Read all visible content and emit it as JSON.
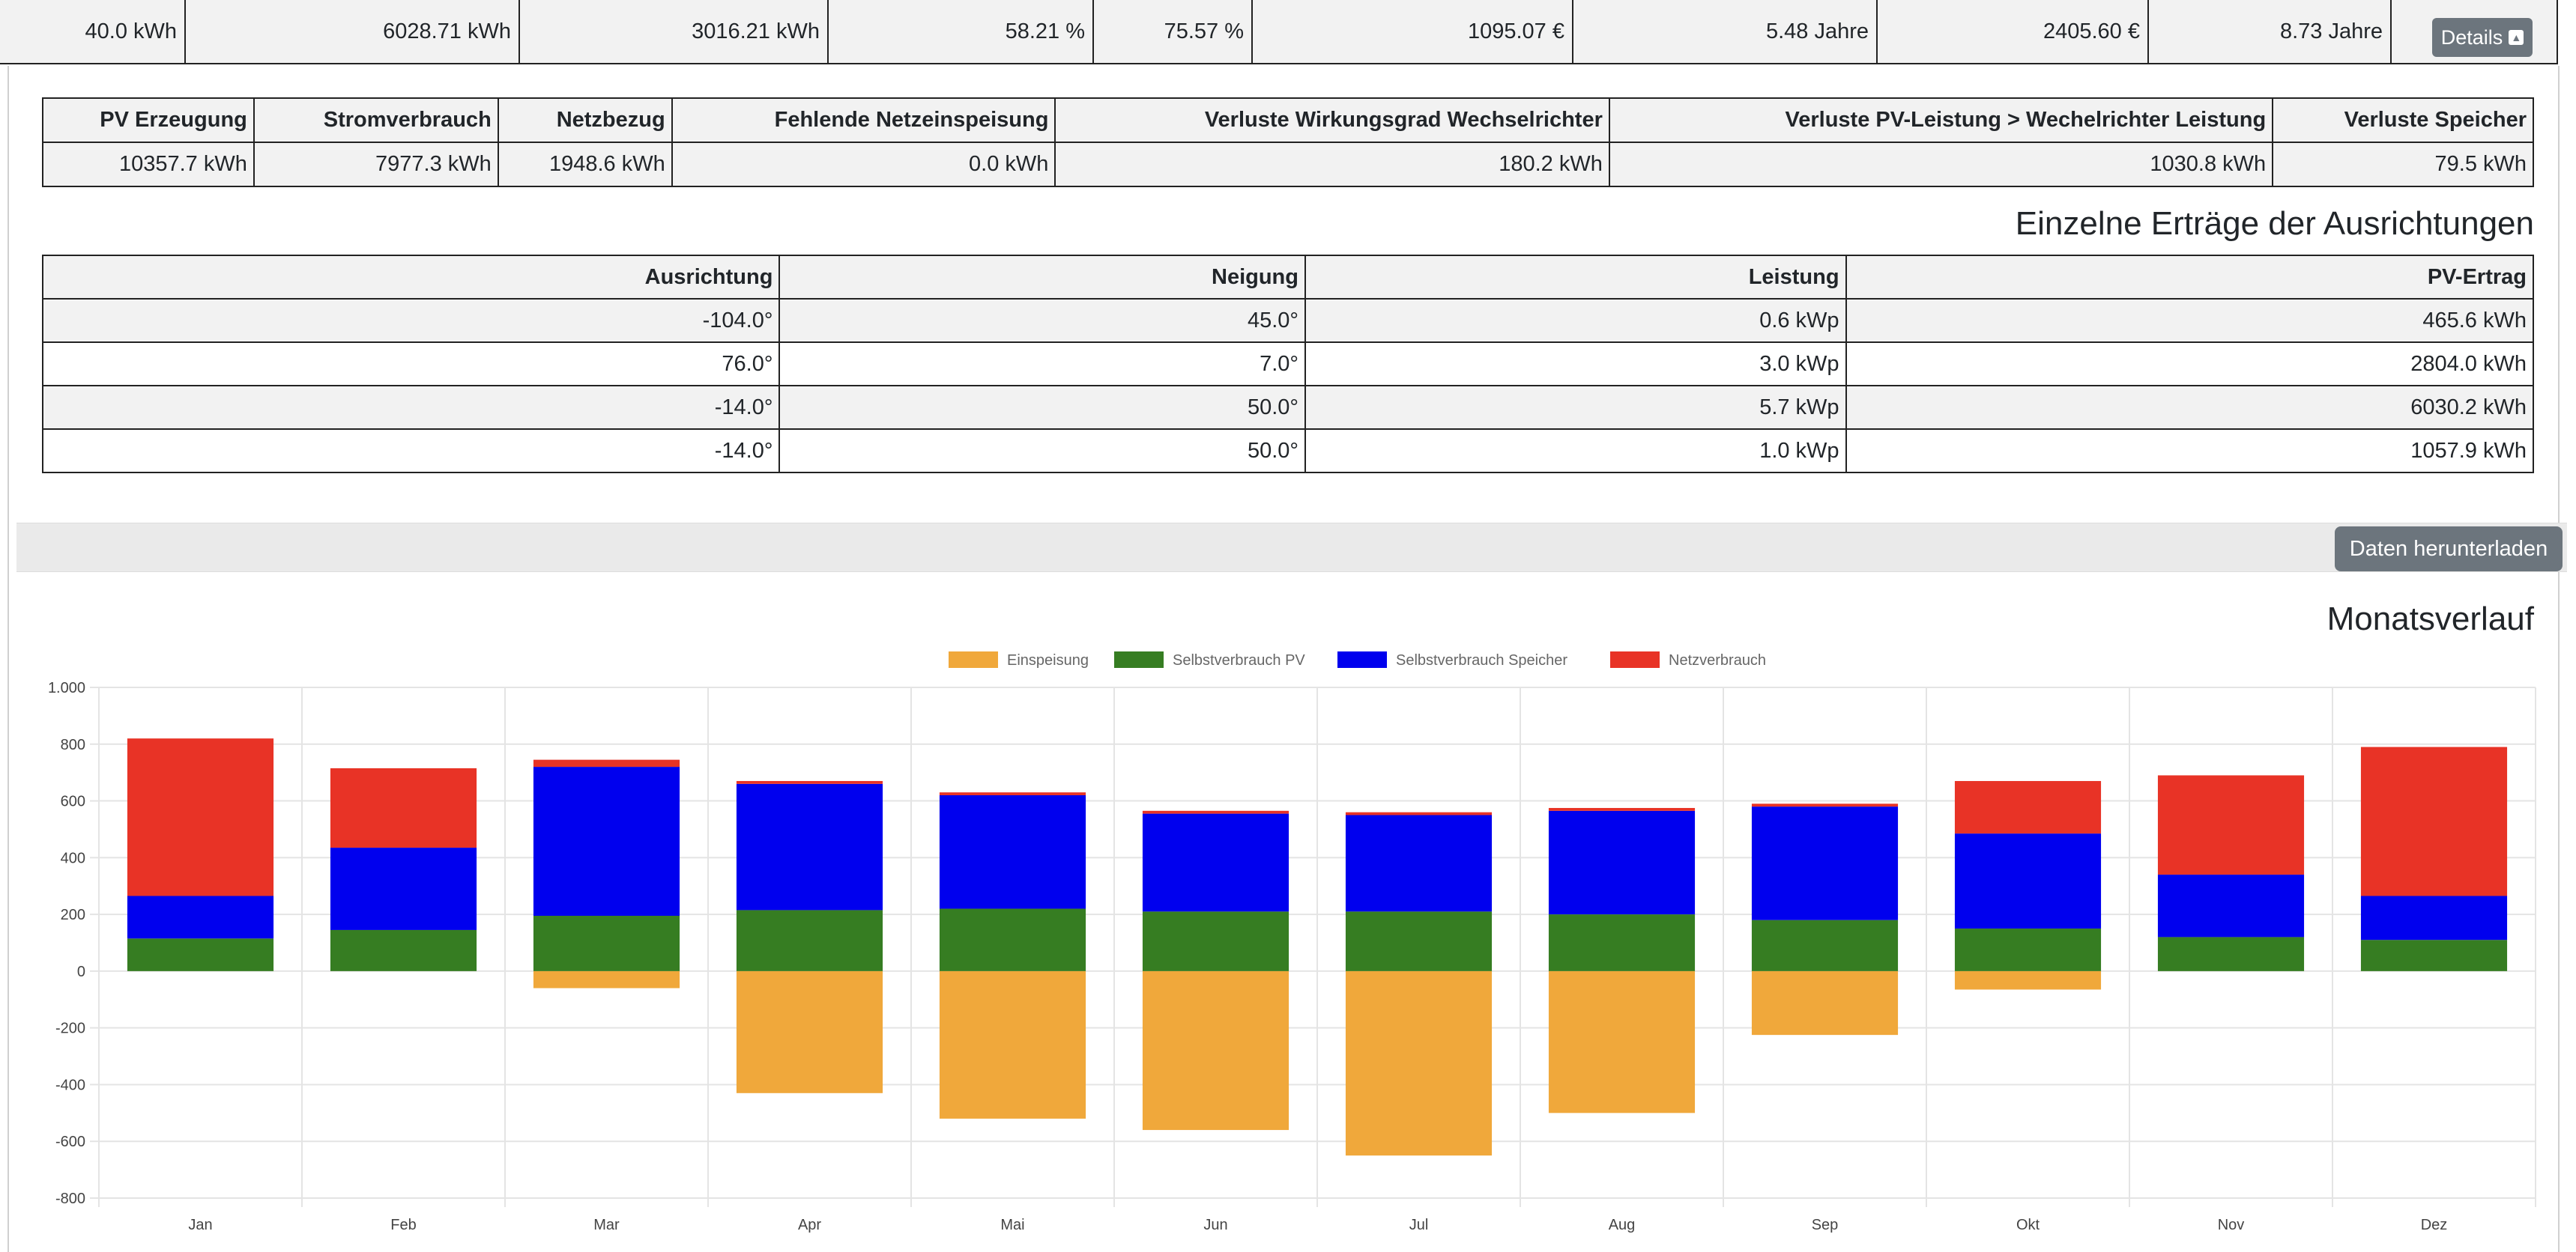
{
  "summary": {
    "cells": [
      "40.0 kWh",
      "6028.71 kWh",
      "3016.21 kWh",
      "58.21 %",
      "75.57 %",
      "1095.07 €",
      "5.48 Jahre",
      "2405.60 €",
      "8.73 Jahre"
    ],
    "details_label": "Details"
  },
  "energy_table": {
    "headers": [
      "PV Erzeugung",
      "Stromverbrauch",
      "Netzbezug",
      "Fehlende Netzeinspeisung",
      "Verluste Wirkungsgrad Wechselrichter",
      "Verluste PV-Leistung > Wechelrichter Leistung",
      "Verluste Speicher"
    ],
    "row": [
      "10357.7 kWh",
      "7977.3 kWh",
      "1948.6 kWh",
      "0.0 kWh",
      "180.2 kWh",
      "1030.8 kWh",
      "79.5 kWh"
    ]
  },
  "orientation": {
    "heading": "Einzelne Erträge der Ausrichtungen",
    "headers": [
      "Ausrichtung",
      "Neigung",
      "Leistung",
      "PV-Ertrag"
    ],
    "rows": [
      [
        "-104.0°",
        "45.0°",
        "0.6 kWp",
        "465.6 kWh"
      ],
      [
        "76.0°",
        "7.0°",
        "3.0 kWp",
        "2804.0 kWh"
      ],
      [
        "-14.0°",
        "50.0°",
        "5.7 kWp",
        "6030.2 kWh"
      ],
      [
        "-14.0°",
        "50.0°",
        "1.0 kWp",
        "1057.9 kWh"
      ]
    ]
  },
  "download_label": "Daten herunterladen",
  "chart_heading": "Monatsverlauf",
  "chart_data": {
    "type": "bar",
    "stacked": true,
    "categories": [
      "Jan",
      "Feb",
      "Mar",
      "Apr",
      "Mai",
      "Jun",
      "Jul",
      "Aug",
      "Sep",
      "Okt",
      "Nov",
      "Dez"
    ],
    "series": [
      {
        "name": "Einspeisung",
        "color": "#f0a83b",
        "values": [
          0,
          0,
          -60,
          -430,
          -520,
          -560,
          -650,
          -500,
          -225,
          -65,
          0,
          0
        ]
      },
      {
        "name": "Selbstverbrauch PV",
        "color": "#367d22",
        "values": [
          115,
          145,
          195,
          215,
          220,
          210,
          210,
          200,
          180,
          150,
          120,
          110
        ]
      },
      {
        "name": "Selbstverbrauch Speicher",
        "color": "#0000ee",
        "values": [
          150,
          290,
          525,
          445,
          400,
          345,
          340,
          365,
          400,
          335,
          220,
          155
        ]
      },
      {
        "name": "Netzverbrauch",
        "color": "#e83326",
        "values": [
          555,
          280,
          25,
          10,
          10,
          10,
          10,
          10,
          10,
          185,
          350,
          525
        ]
      }
    ],
    "ylim": [
      -800,
      1000
    ],
    "yticks": [
      -800,
      -600,
      -400,
      -200,
      0,
      200,
      400,
      600,
      800,
      1000
    ],
    "ytick_labels": [
      "-800",
      "-600",
      "-400",
      "-200",
      "0",
      "200",
      "400",
      "600",
      "800",
      "1.000"
    ],
    "grid": true,
    "legend": "top"
  }
}
